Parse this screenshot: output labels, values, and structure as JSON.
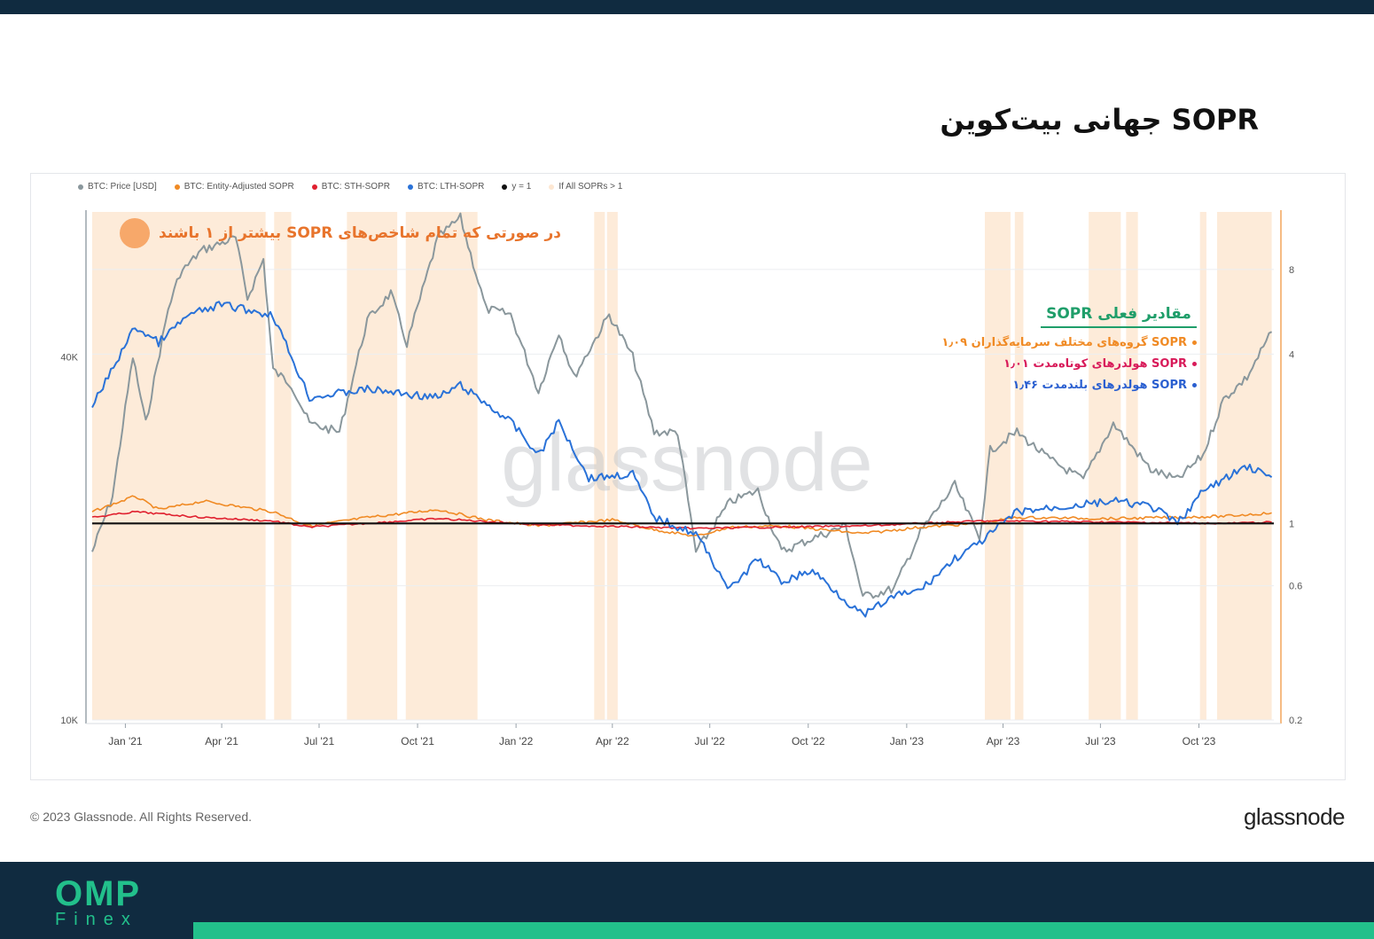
{
  "page": {
    "title": "SOPR جهانی بیت‌کوین",
    "copyright": "© 2023 Glassnode. All Rights Reserved.",
    "brand": "glassnode",
    "watermark": "glassnode",
    "logo_main": "OMP",
    "logo_sub": "Finex"
  },
  "colors": {
    "price": "#8a979c",
    "entity_sopr": "#f08a24",
    "sth_sopr": "#e0202f",
    "lth_sopr": "#2a72d8",
    "y1": "#111111",
    "all_above_one": "#fde7d2",
    "accent_green": "#1f9e6a",
    "navy": "#102b40"
  },
  "annotations": {
    "all_above_one": "در صورتی که تمام شاخص‌های SOPR بیشتر از ۱ باشند",
    "current_title": "مقادیر فعلی SOPR",
    "current_entity": "SOPR گروه‌های مختلف سرمایه‌گذاران ۱٫۰۹",
    "current_sth": "SOPR هولدرهای کوتاه‌مدت ۱٫۰۱",
    "current_lth": "SOPR هولدرهای بلندمدت ۱٫۴۶"
  },
  "chart_data": {
    "type": "line",
    "legend_placement": "top-left",
    "legend": [
      "BTC: Price [USD]",
      "BTC: Entity-Adjusted SOPR",
      "BTC: STH-SOPR",
      "BTC: LTH-SOPR",
      "y = 1",
      "If All SOPRs > 1"
    ],
    "x_ticks": [
      "Jan '21",
      "Apr '21",
      "Jul '21",
      "Oct '21",
      "Jan '22",
      "Apr '22",
      "Jul '22",
      "Oct '22",
      "Jan '23",
      "Apr '23",
      "Jul '23",
      "Oct '23"
    ],
    "x_range": [
      "2020-12-01",
      "2023-12-10"
    ],
    "y_left": {
      "scale": "log",
      "range": [
        10000,
        70000
      ],
      "ticks": [
        "10K",
        "40K"
      ],
      "tick_values": [
        10000,
        40000
      ]
    },
    "y_right": {
      "scale": "log",
      "range": [
        0.2,
        13
      ],
      "ticks": [
        "0.2",
        "0.6",
        "1",
        "4",
        "8"
      ],
      "tick_values": [
        0.2,
        0.6,
        1,
        4,
        8
      ]
    },
    "grid": true,
    "series": [
      {
        "name": "BTC: Price [USD]",
        "axis": "left",
        "x": [
          "2020-12-01",
          "2020-12-20",
          "2021-01-08",
          "2021-01-20",
          "2021-02-10",
          "2021-02-21",
          "2021-03-13",
          "2021-04-14",
          "2021-04-25",
          "2021-05-10",
          "2021-05-19",
          "2021-06-05",
          "2021-06-22",
          "2021-07-20",
          "2021-08-15",
          "2021-09-06",
          "2021-09-21",
          "2021-10-20",
          "2021-11-10",
          "2021-12-04",
          "2021-12-27",
          "2022-01-22",
          "2022-02-10",
          "2022-02-24",
          "2022-03-29",
          "2022-04-20",
          "2022-05-10",
          "2022-06-01",
          "2022-06-18",
          "2022-07-20",
          "2022-08-15",
          "2022-09-06",
          "2022-10-05",
          "2022-11-05",
          "2022-11-21",
          "2022-12-20",
          "2023-01-14",
          "2023-02-15",
          "2023-03-10",
          "2023-03-20",
          "2023-04-14",
          "2023-05-15",
          "2023-06-15",
          "2023-07-13",
          "2023-08-17",
          "2023-09-11",
          "2023-10-05",
          "2023-10-24",
          "2023-11-15",
          "2023-12-08"
        ],
        "values": [
          19000,
          23500,
          40000,
          31000,
          48000,
          55000,
          60000,
          63000,
          50000,
          58000,
          38000,
          36000,
          31000,
          30000,
          46000,
          51000,
          42000,
          63000,
          68000,
          48000,
          47000,
          35000,
          44000,
          37000,
          47000,
          40000,
          30000,
          30000,
          19000,
          23000,
          24000,
          19000,
          20000,
          21000,
          16000,
          16500,
          20500,
          24500,
          20000,
          28000,
          30000,
          27000,
          25000,
          31000,
          26000,
          25000,
          27500,
          34000,
          37000,
          44000
        ]
      },
      {
        "name": "BTC: Entity-Adjusted SOPR",
        "axis": "right",
        "x": [
          "2020-12-01",
          "2021-01-10",
          "2021-02-01",
          "2021-03-15",
          "2021-05-19",
          "2021-06-22",
          "2021-08-15",
          "2021-10-20",
          "2021-12-04",
          "2022-01-22",
          "2022-04-01",
          "2022-05-10",
          "2022-06-18",
          "2022-07-20",
          "2022-09-06",
          "2022-11-21",
          "2023-01-14",
          "2023-03-10",
          "2023-04-14",
          "2023-07-13",
          "2023-10-24",
          "2023-12-08"
        ],
        "values": [
          1.1,
          1.25,
          1.12,
          1.2,
          1.1,
          0.98,
          1.05,
          1.12,
          1.03,
          0.98,
          1.03,
          0.95,
          0.9,
          0.97,
          0.98,
          0.92,
          0.97,
          1.0,
          1.05,
          1.04,
          1.06,
          1.09
        ]
      },
      {
        "name": "BTC: STH-SOPR",
        "axis": "right",
        "x": [
          "2020-12-01",
          "2021-01-10",
          "2021-03-15",
          "2021-05-19",
          "2021-06-22",
          "2021-10-20",
          "2022-01-22",
          "2022-06-18",
          "2022-11-21",
          "2023-03-10",
          "2023-04-14",
          "2023-10-24",
          "2023-12-08"
        ],
        "values": [
          1.05,
          1.1,
          1.05,
          1.02,
          0.97,
          1.04,
          0.99,
          0.96,
          0.98,
          1.02,
          1.02,
          1.0,
          1.01
        ]
      },
      {
        "name": "BTC: LTH-SOPR",
        "axis": "right",
        "x": [
          "2020-12-01",
          "2021-01-10",
          "2021-02-01",
          "2021-03-01",
          "2021-04-01",
          "2021-05-19",
          "2021-06-22",
          "2021-08-15",
          "2021-10-20",
          "2021-11-10",
          "2021-12-27",
          "2022-01-22",
          "2022-02-10",
          "2022-03-10",
          "2022-04-20",
          "2022-05-10",
          "2022-06-18",
          "2022-07-20",
          "2022-08-15",
          "2022-09-06",
          "2022-10-05",
          "2022-11-21",
          "2022-12-20",
          "2023-01-14",
          "2023-02-15",
          "2023-03-10",
          "2023-04-14",
          "2023-07-13",
          "2023-08-17",
          "2023-09-11",
          "2023-10-05",
          "2023-11-15",
          "2023-12-08"
        ],
        "values": [
          2.6,
          5.0,
          4.4,
          5.5,
          6.0,
          5.5,
          2.8,
          3.0,
          2.8,
          3.1,
          2.3,
          1.75,
          2.3,
          1.45,
          1.5,
          1.05,
          0.92,
          0.58,
          0.75,
          0.62,
          0.68,
          0.47,
          0.55,
          0.58,
          0.75,
          0.85,
          1.1,
          1.2,
          1.15,
          1.0,
          1.3,
          1.6,
          1.46
        ]
      },
      {
        "name": "y = 1",
        "axis": "right",
        "x": [
          "2020-12-01",
          "2023-12-10"
        ],
        "values": [
          1,
          1
        ]
      }
    ],
    "highlight_ranges": [
      [
        "2020-12-01",
        "2021-05-12"
      ],
      [
        "2021-05-20",
        "2021-06-05"
      ],
      [
        "2021-07-27",
        "2021-09-12"
      ],
      [
        "2021-09-20",
        "2021-11-26"
      ],
      [
        "2022-03-15",
        "2022-03-25"
      ],
      [
        "2022-03-27",
        "2022-04-06"
      ],
      [
        "2023-03-15",
        "2023-04-08"
      ],
      [
        "2023-04-12",
        "2023-04-20"
      ],
      [
        "2023-06-20",
        "2023-07-20"
      ],
      [
        "2023-07-25",
        "2023-08-05"
      ],
      [
        "2023-10-02",
        "2023-10-08"
      ],
      [
        "2023-10-18",
        "2023-12-08"
      ]
    ]
  }
}
